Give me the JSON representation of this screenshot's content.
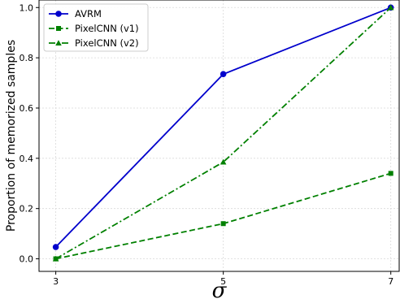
{
  "chart_data": {
    "type": "line",
    "title": "",
    "xlabel": "σ",
    "ylabel": "Proportion of memorized samples",
    "x": [
      3,
      5,
      7
    ],
    "xticks": [
      3,
      5,
      7
    ],
    "xlim": [
      2.8,
      7.1
    ],
    "yticks": [
      0.0,
      0.2,
      0.4,
      0.6,
      0.8,
      1.0
    ],
    "ytick_labels": [
      "0.0",
      "0.2",
      "0.4",
      "0.6",
      "0.8",
      "1.0"
    ],
    "ylim": [
      -0.05,
      1.03
    ],
    "grid": true,
    "legend_position": "top-left",
    "series": [
      {
        "name": "AVRM",
        "values": [
          0.047,
          0.735,
          1.0
        ],
        "color": "#0000cc",
        "linestyle": "solid",
        "marker": "circle"
      },
      {
        "name": "PixelCNN (v1)",
        "values": [
          0.0,
          0.14,
          0.34
        ],
        "color": "#008000",
        "linestyle": "dashed",
        "marker": "square"
      },
      {
        "name": "PixelCNN (v2)",
        "values": [
          0.0,
          0.385,
          1.0
        ],
        "color": "#008000",
        "linestyle": "dashdot",
        "marker": "triangle"
      }
    ]
  }
}
